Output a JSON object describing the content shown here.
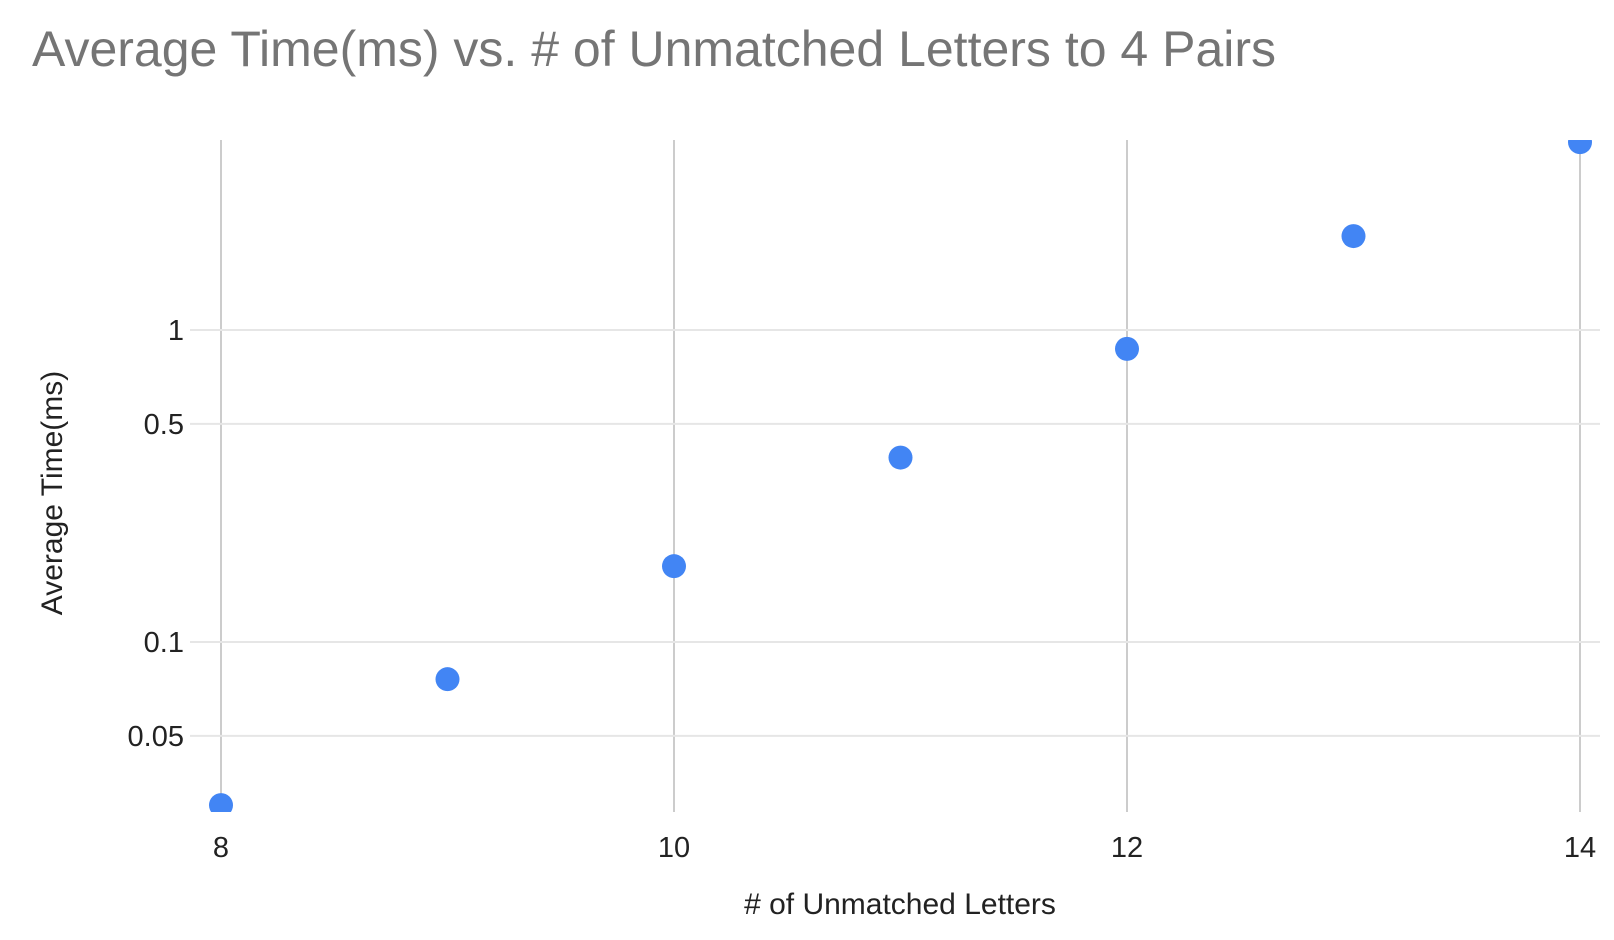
{
  "chart_data": {
    "type": "scatter",
    "title": "Average Time(ms) vs. # of Unmatched Letters to 4 Pairs",
    "xlabel": "# of Unmatched Letters",
    "ylabel": "Average Time(ms)",
    "x_scale": "linear",
    "y_scale": "log",
    "xlim": [
      8,
      14
    ],
    "x_ticks": [
      8,
      10,
      12,
      14
    ],
    "x_tick_labels": [
      "8",
      "10",
      "12",
      "14"
    ],
    "y_ticks": [
      0.05,
      0.1,
      0.5,
      1
    ],
    "y_tick_labels": [
      "0.05",
      "0.1",
      "0.5",
      "1"
    ],
    "grid": true,
    "legend": "none",
    "point_color": "#4285f4",
    "series": [
      {
        "name": "",
        "x": [
          8,
          9,
          10,
          11,
          12,
          13,
          14
        ],
        "y": [
          0.03,
          0.076,
          0.175,
          0.39,
          0.87,
          2.0,
          4.0
        ]
      }
    ]
  }
}
